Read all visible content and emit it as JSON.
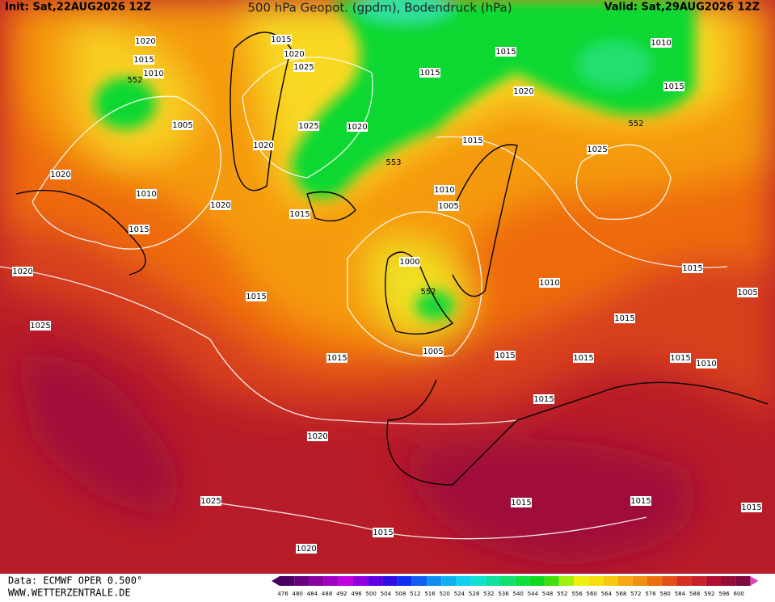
{
  "header": {
    "init": "Init: Sat,22AUG2026 12Z",
    "title": "500 hPa Geopot. (gpdm), Bodendruck (hPa)",
    "valid": "Valid: Sat,29AUG2026 12Z"
  },
  "footer": {
    "source": "Data: ECMWF OPER 0.500°",
    "website": "WWW.WETTERZENTRALE.DE"
  },
  "isobar_labels": [
    1020,
    1015,
    1010,
    552,
    1005,
    1020,
    1010,
    1020,
    1015,
    1020,
    1025,
    1015,
    1020,
    1025,
    1025,
    1020,
    1020,
    1015,
    553,
    1015,
    1015,
    1020,
    1010,
    1015,
    552,
    1025,
    1015,
    1010,
    1005,
    1000,
    552,
    1015,
    1015,
    1005,
    1015,
    1010,
    1015,
    1005,
    1015,
    1015,
    1015,
    1010,
    1015,
    1020,
    1025,
    1015,
    1015,
    1015,
    1020,
    1015
  ],
  "color_scale": {
    "values": [
      476,
      480,
      484,
      488,
      492,
      496,
      500,
      504,
      508,
      512,
      516,
      520,
      524,
      528,
      532,
      536,
      540,
      544,
      548,
      552,
      556,
      560,
      564,
      568,
      572,
      576,
      580,
      584,
      588,
      592,
      596,
      600
    ],
    "colors": [
      "#4a0060",
      "#6a0080",
      "#8a00a0",
      "#a000c0",
      "#c000e0",
      "#9000e0",
      "#6000e0",
      "#3010e0",
      "#1030f0",
      "#1060f0",
      "#1090f0",
      "#10b0f0",
      "#10d0f0",
      "#10e0d0",
      "#10e0a0",
      "#10e070",
      "#10e040",
      "#10d820",
      "#40e010",
      "#a0f010",
      "#f0f010",
      "#f8e010",
      "#f8c810",
      "#f8a810",
      "#f09010",
      "#ec7010",
      "#e45018",
      "#d83020",
      "#c82028",
      "#b01030",
      "#980c38",
      "#800840"
    ]
  }
}
